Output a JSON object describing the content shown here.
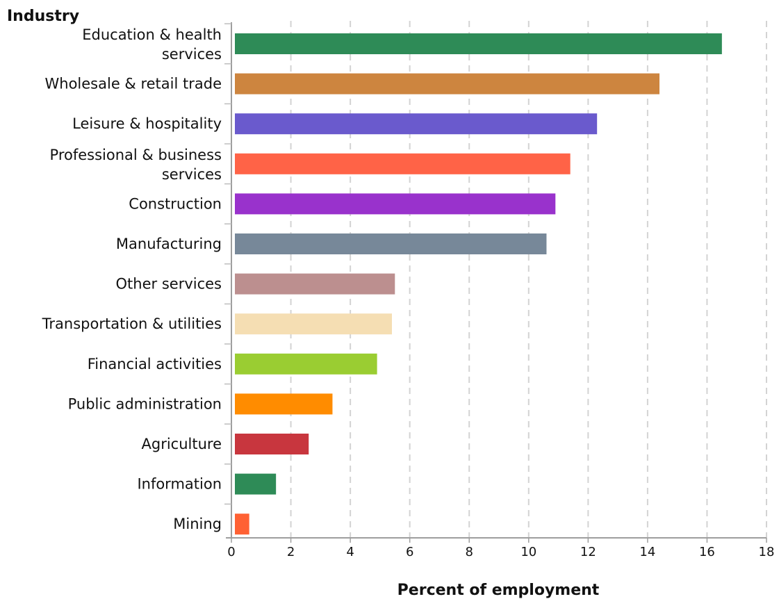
{
  "chart_data": {
    "type": "bar",
    "orientation": "horizontal",
    "ylabel": "Industry",
    "xlabel": "Percent of employment",
    "xlim": [
      0,
      18
    ],
    "xticks": [
      0,
      2,
      4,
      6,
      8,
      10,
      12,
      14,
      16,
      18
    ],
    "grid": "vertical-dashed",
    "categories": [
      "Education & health services",
      "Wholesale & retail trade",
      "Leisure & hospitality",
      "Professional & business services",
      "Construction",
      "Manufacturing",
      "Other services",
      "Transportation & utilities",
      "Financial activities",
      "Public administration",
      "Agriculture",
      "Information",
      "Mining"
    ],
    "values": [
      16.5,
      14.4,
      12.3,
      11.4,
      10.9,
      10.6,
      5.5,
      5.4,
      4.9,
      3.4,
      2.6,
      1.5,
      0.6
    ],
    "colors": [
      "#2e8b57",
      "#cd853f",
      "#6a5acd",
      "#ff6347",
      "#9932cc",
      "#778899",
      "#bc8f8f",
      "#f5deb3",
      "#9acd32",
      "#ff8c00",
      "#c8363e",
      "#2e8b57",
      "#ff6133"
    ]
  }
}
